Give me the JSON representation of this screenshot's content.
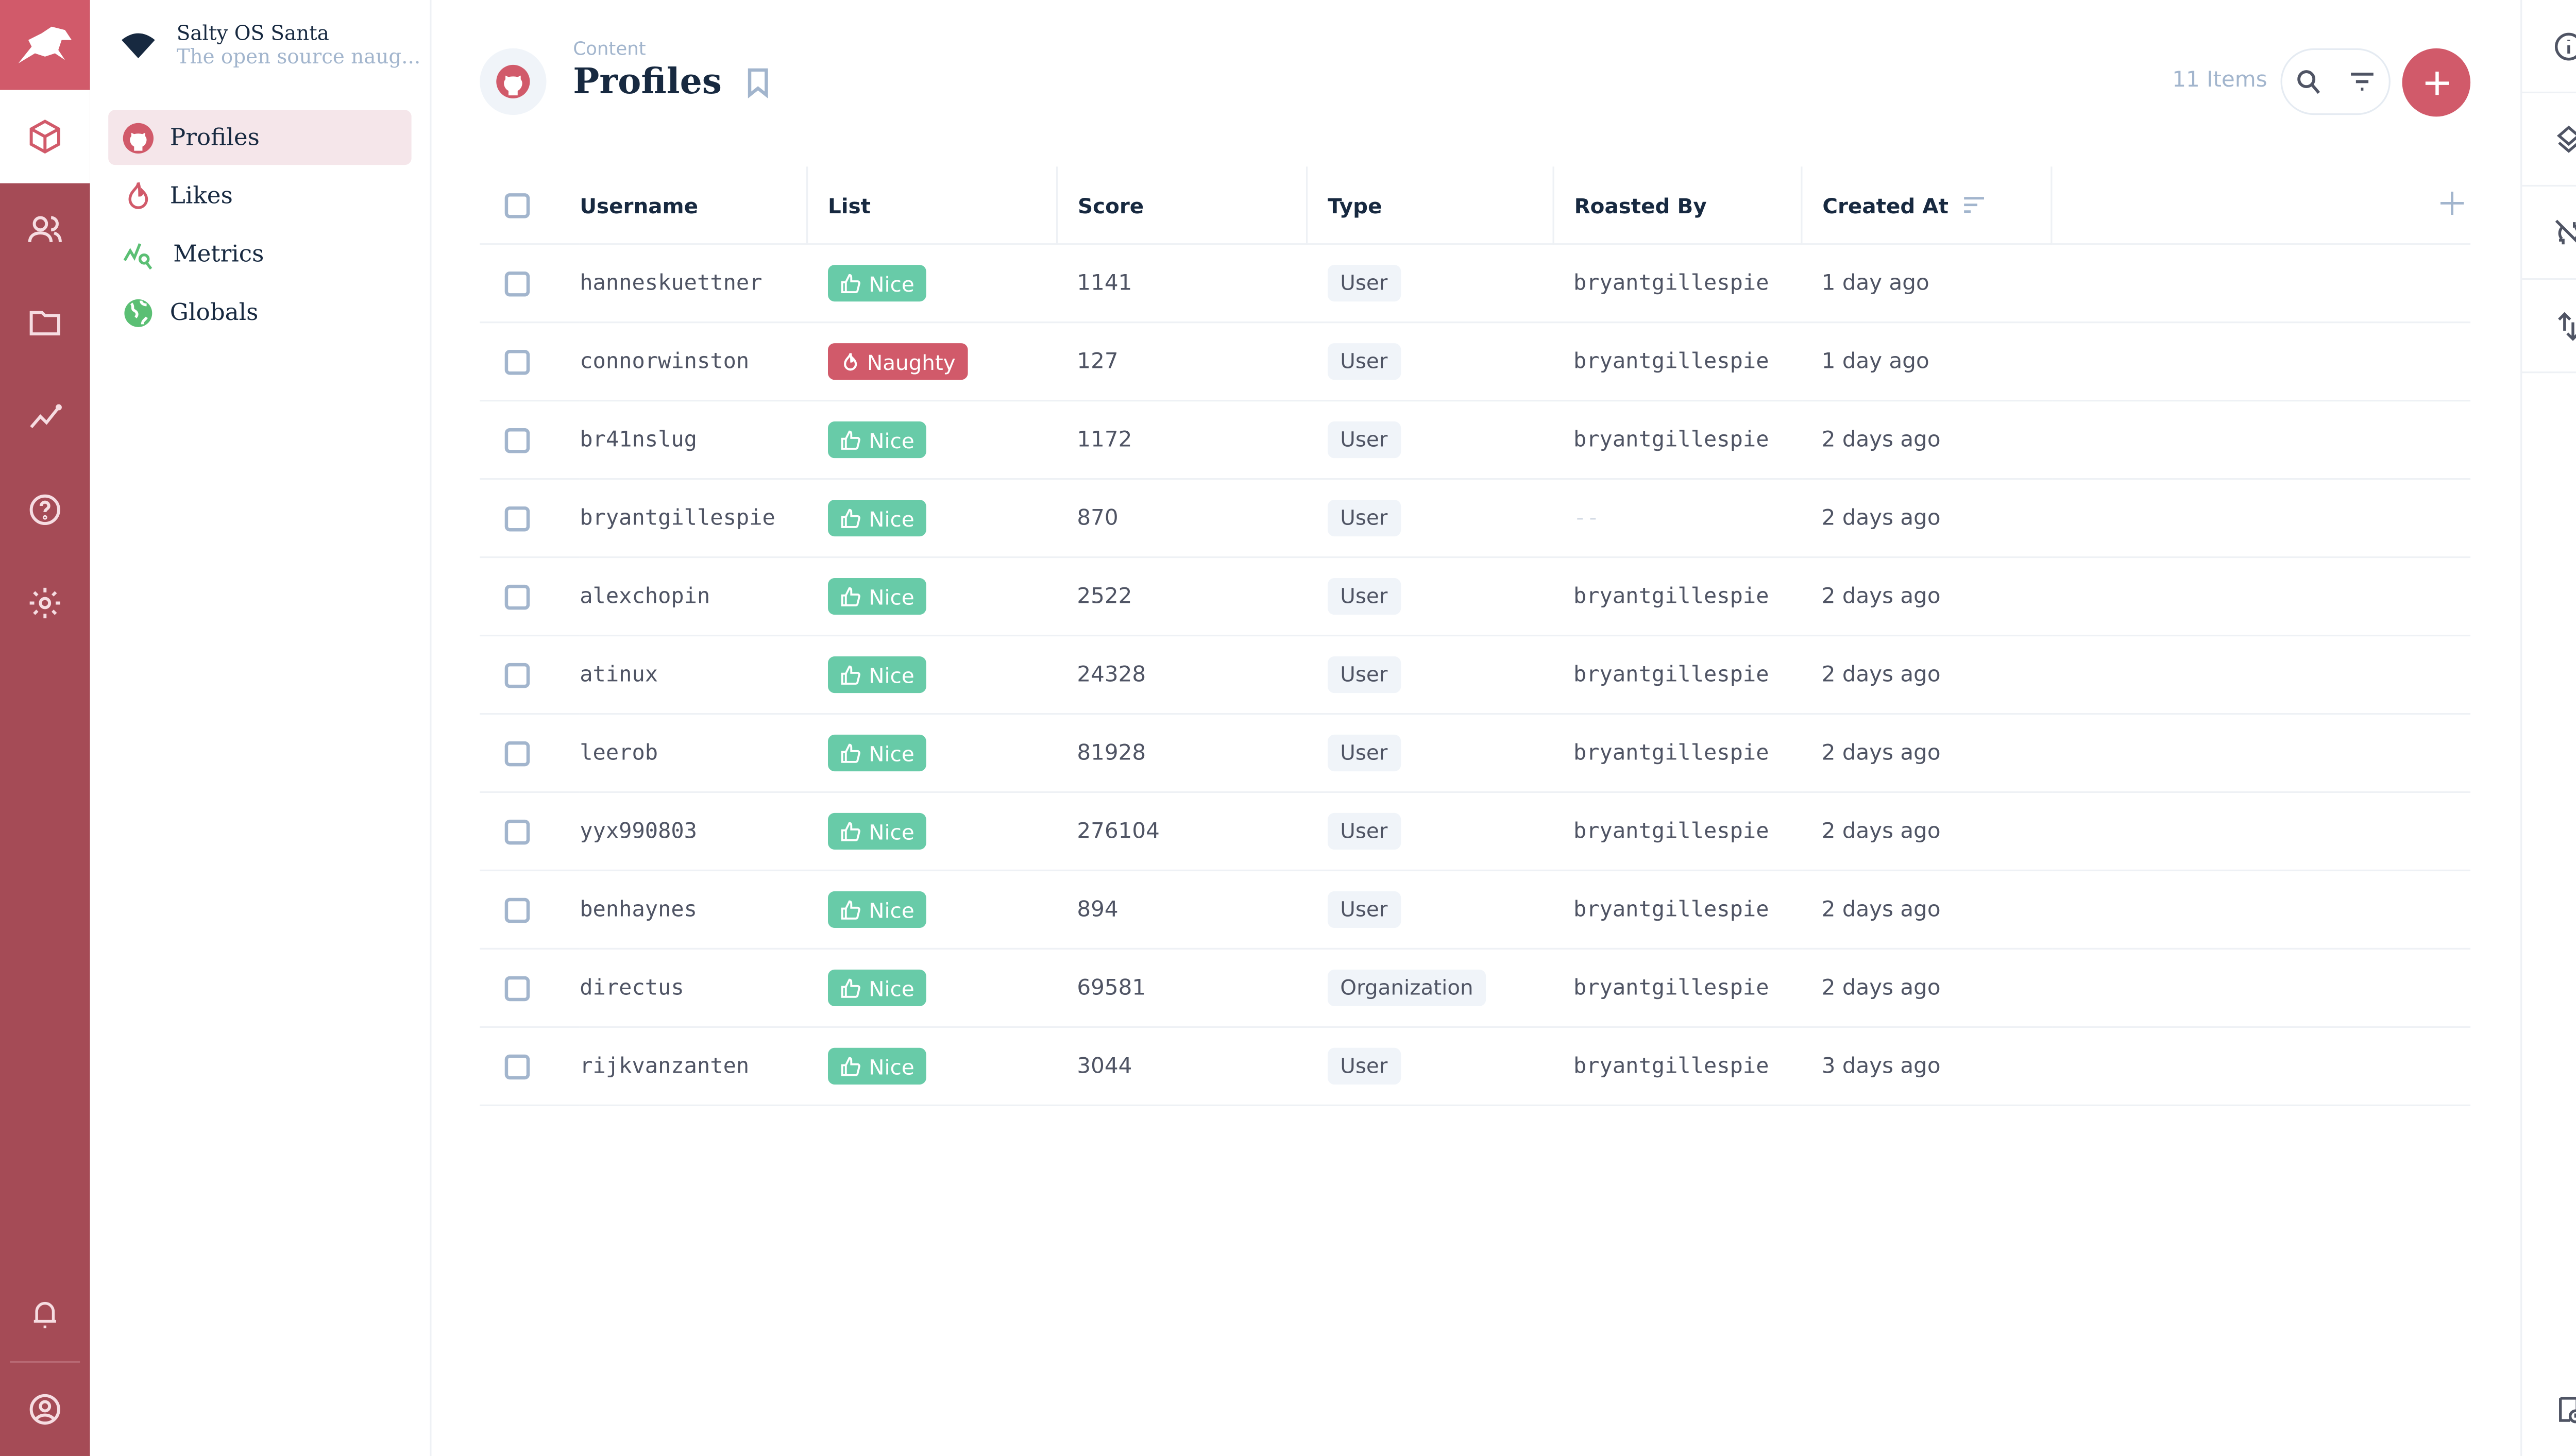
{
  "project": {
    "name": "Salty OS Santa",
    "description": "The open source naug..."
  },
  "colors": {
    "brand": "#d15a6a",
    "rail": "#a54b56",
    "nice": "#68cba8",
    "naughty": "#d15a6a"
  },
  "rail": {
    "items": [
      "content-icon",
      "users-icon",
      "files-icon",
      "insights-icon",
      "help-icon",
      "settings-icon"
    ],
    "bottom": [
      "notifications-icon",
      "user-avatar-icon"
    ]
  },
  "nav": {
    "items": [
      {
        "label": "Profiles",
        "icon": "github-icon",
        "active": true
      },
      {
        "label": "Likes",
        "icon": "fire-icon"
      },
      {
        "label": "Metrics",
        "icon": "analytics-icon"
      },
      {
        "label": "Globals",
        "icon": "globe-icon"
      }
    ]
  },
  "header": {
    "breadcrumb": "Content",
    "title": "Profiles",
    "item_count": "11 Items"
  },
  "table": {
    "columns": [
      "Username",
      "List",
      "Score",
      "Type",
      "Roasted By",
      "Created At"
    ],
    "rows": [
      {
        "username": "hanneskuettner",
        "list": "Nice",
        "score": "1141",
        "type": "User",
        "roasted_by": "bryantgillespie",
        "created": "1 day ago"
      },
      {
        "username": "connorwinston",
        "list": "Naughty",
        "score": "127",
        "type": "User",
        "roasted_by": "bryantgillespie",
        "created": "1 day ago"
      },
      {
        "username": "br41nslug",
        "list": "Nice",
        "score": "1172",
        "type": "User",
        "roasted_by": "bryantgillespie",
        "created": "2 days ago"
      },
      {
        "username": "bryantgillespie",
        "list": "Nice",
        "score": "870",
        "type": "User",
        "roasted_by": "--",
        "created": "2 days ago"
      },
      {
        "username": "alexchopin",
        "list": "Nice",
        "score": "2522",
        "type": "User",
        "roasted_by": "bryantgillespie",
        "created": "2 days ago"
      },
      {
        "username": "atinux",
        "list": "Nice",
        "score": "24328",
        "type": "User",
        "roasted_by": "bryantgillespie",
        "created": "2 days ago"
      },
      {
        "username": "leerob",
        "list": "Nice",
        "score": "81928",
        "type": "User",
        "roasted_by": "bryantgillespie",
        "created": "2 days ago"
      },
      {
        "username": "yyx990803",
        "list": "Nice",
        "score": "276104",
        "type": "User",
        "roasted_by": "bryantgillespie",
        "created": "2 days ago"
      },
      {
        "username": "benhaynes",
        "list": "Nice",
        "score": "894",
        "type": "User",
        "roasted_by": "bryantgillespie",
        "created": "2 days ago"
      },
      {
        "username": "directus",
        "list": "Nice",
        "score": "69581",
        "type": "Organization",
        "roasted_by": "bryantgillespie",
        "created": "2 days ago"
      },
      {
        "username": "rijkvanzanten",
        "list": "Nice",
        "score": "3044",
        "type": "User",
        "roasted_by": "bryantgillespie",
        "created": "3 days ago"
      }
    ]
  },
  "right_sidebar": {
    "items": [
      "info-icon",
      "layers-icon",
      "sync-disabled-icon",
      "import-export-icon"
    ],
    "bottom": "flow-icon"
  }
}
